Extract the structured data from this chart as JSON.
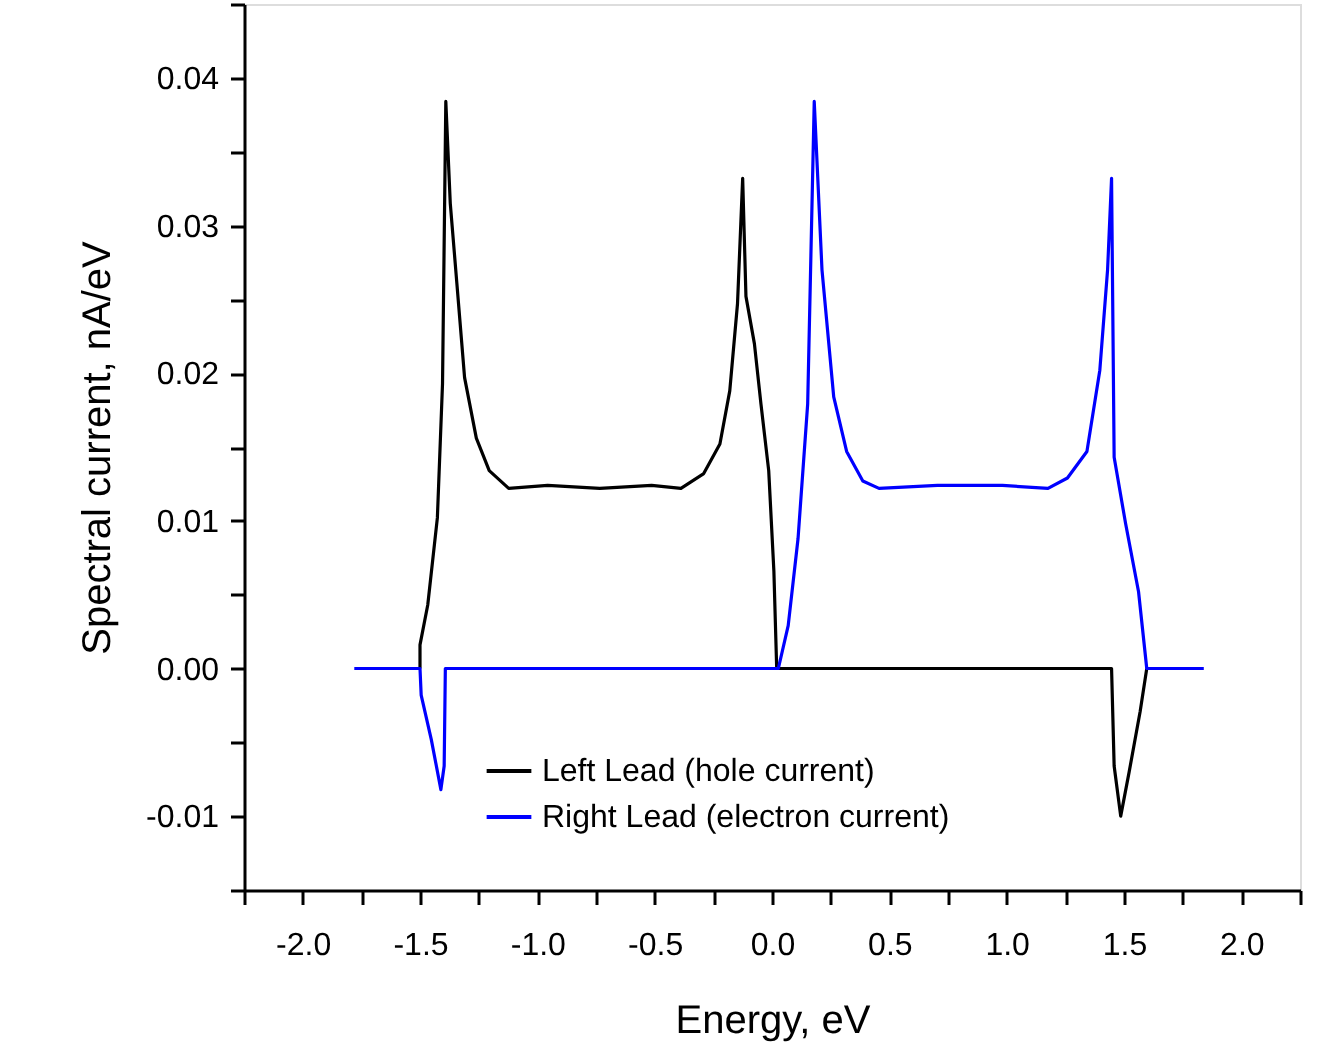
{
  "chart_data": {
    "type": "line",
    "xlabel": "Energy, eV",
    "ylabel": "Spectral current, nA/eV",
    "xlim": [
      -2.25,
      2.25
    ],
    "xticks": [
      {
        "value": -2.25,
        "label": null
      },
      {
        "value": -2.0,
        "label": "-2.0"
      },
      {
        "value": -1.75,
        "label": null
      },
      {
        "value": -1.5,
        "label": "-1.5"
      },
      {
        "value": -1.25,
        "label": null
      },
      {
        "value": -1.0,
        "label": "-1.0"
      },
      {
        "value": -0.75,
        "label": null
      },
      {
        "value": -0.5,
        "label": "-0.5"
      },
      {
        "value": -0.25,
        "label": null
      },
      {
        "value": 0,
        "label": "0.0"
      },
      {
        "value": 0.25,
        "label": null
      },
      {
        "value": 0.5,
        "label": "0.5"
      },
      {
        "value": 0.75,
        "label": null
      },
      {
        "value": 1.0,
        "label": "1.0"
      },
      {
        "value": 1.25,
        "label": null
      },
      {
        "value": 1.5,
        "label": "1.5"
      },
      {
        "value": 1.75,
        "label": null
      },
      {
        "value": 2.0,
        "label": "2.0"
      },
      {
        "value": 2.25,
        "label": null
      }
    ],
    "ylim": [
      -0.015,
      0.045
    ],
    "yticks": [
      {
        "value": -0.015,
        "label": null
      },
      {
        "value": -0.01,
        "label": "-0.01"
      },
      {
        "value": -0.005,
        "label": null
      },
      {
        "value": 0,
        "label": "0.00"
      },
      {
        "value": 0.005,
        "label": null
      },
      {
        "value": 0.01,
        "label": "0.01"
      },
      {
        "value": 0.015,
        "label": null
      },
      {
        "value": 0.02,
        "label": "0.02"
      },
      {
        "value": 0.025,
        "label": null
      },
      {
        "value": 0.03,
        "label": "0.03"
      },
      {
        "value": 0.035,
        "label": null
      },
      {
        "value": 0.04,
        "label": "0.04"
      },
      {
        "value": 0.045,
        "label": null
      }
    ],
    "grid": false,
    "legend": "bottom",
    "marker": "none",
    "line_style": "solid",
    "series": [
      {
        "name": "Left Lead (hole current)",
        "color": "#000000",
        "x": [
          -1.5,
          -1.5,
          -1.467,
          -1.426,
          -1.404,
          -1.39,
          -1.371,
          -1.343,
          -1.31,
          -1.26,
          -1.205,
          -1.122,
          -0.956,
          -0.734,
          -0.513,
          -0.388,
          -0.291,
          -0.222,
          -0.18,
          -0.147,
          -0.125,
          -0.111,
          -0.075,
          -0.047,
          -0.014,
          0.008,
          0.02,
          1.447,
          1.458,
          1.486,
          1.522,
          1.569,
          1.597
        ],
        "values": [
          0,
          0.0016,
          0.0043,
          0.0102,
          0.0193,
          0.0384,
          0.0315,
          0.0261,
          0.0197,
          0.0156,
          0.0134,
          0.0122,
          0.0124,
          0.0122,
          0.0124,
          0.0122,
          0.0132,
          0.0152,
          0.0188,
          0.0247,
          0.0332,
          0.0252,
          0.022,
          0.0179,
          0.0134,
          0.0066,
          0,
          0,
          -0.0066,
          -0.01,
          -0.007,
          -0.0029,
          0
        ]
      },
      {
        "name": "Right Lead (electron current)",
        "color": "#0000ff",
        "x": [
          -1.78,
          -1.5,
          -1.495,
          -1.452,
          -1.411,
          -1.397,
          -1.392,
          0.02,
          0.027,
          0.069,
          0.111,
          0.152,
          0.18,
          0.213,
          0.263,
          0.318,
          0.387,
          0.456,
          0.705,
          0.982,
          1.176,
          1.259,
          1.342,
          1.397,
          1.43,
          1.447,
          1.458,
          1.507,
          1.562,
          1.597,
          1.84
        ],
        "values": [
          0,
          0,
          -0.0018,
          -0.0048,
          -0.0082,
          -0.0066,
          0,
          0,
          0,
          0.0029,
          0.0088,
          0.0179,
          0.0384,
          0.027,
          0.0184,
          0.0147,
          0.0127,
          0.0122,
          0.0124,
          0.0124,
          0.0122,
          0.0129,
          0.0147,
          0.0202,
          0.027,
          0.0332,
          0.0143,
          0.0098,
          0.0052,
          0,
          0
        ]
      }
    ]
  }
}
